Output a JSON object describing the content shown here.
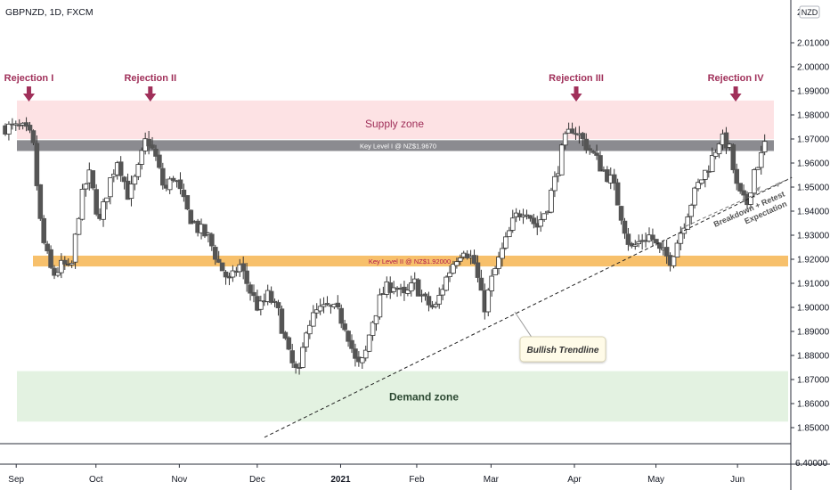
{
  "header": {
    "symbol_label": "GBPNZD, 1D, FXCM"
  },
  "currency_badge": "NZD",
  "zones": {
    "supply": {
      "label": "Supply zone",
      "top": 1.986,
      "bottom": 1.97,
      "color": "#fde2e4"
    },
    "demand": {
      "label": "Demand zone",
      "top": 1.8735,
      "bottom": 1.8525,
      "color": "#e3f2e1"
    }
  },
  "key_levels": [
    {
      "label": "Key Level I @ NZ$1.9670",
      "top": 1.9695,
      "bottom": 1.965,
      "color": "#8b8b90",
      "text_color": "#ffffff"
    },
    {
      "label": "Key Level II @ NZ$1.92000",
      "top": 1.9215,
      "bottom": 1.917,
      "color": "#f7c06b",
      "text_color": "#b0174a"
    }
  ],
  "rejections": [
    {
      "label": "Rejection I",
      "x": 1.3,
      "price": 1.9875
    },
    {
      "label": "Rejection II",
      "x": 8.0,
      "price": 1.986
    },
    {
      "label": "Rejection III",
      "x": 31.5,
      "price": 1.986
    },
    {
      "label": "Rejection IV",
      "x": 40.3,
      "price": 1.9855
    }
  ],
  "trendline": {
    "label": "Bullish Trendline",
    "start": {
      "x": 14.3,
      "price": 1.846
    },
    "end": {
      "x": 43.4,
      "price": 1.954
    }
  },
  "breakdown_note": {
    "line1": "Breakdown + Retest",
    "line2": "Expectation"
  },
  "colors": {
    "bull": "#ffffff",
    "bear": "#555555",
    "wick": "#333333",
    "annot": "#a0305a",
    "gray_arrow": "#9a9a9a"
  },
  "chart_data": {
    "type": "candlestick",
    "title": "GBPNZD, 1D, FXCM",
    "ylim": [
      1.845,
      2.02
    ],
    "yticks": [
      2.01,
      2.0,
      1.99,
      1.98,
      1.97,
      1.96,
      1.95,
      1.94,
      1.93,
      1.92,
      1.91,
      1.9,
      1.89,
      1.88,
      1.87,
      1.86,
      1.85
    ],
    "ytick_labels": [
      "2.01000",
      "2.00000",
      "1.99000",
      "1.98000",
      "1.97000",
      "1.96000",
      "1.95000",
      "1.94000",
      "1.93000",
      "1.92000",
      "1.91000",
      "1.90000",
      "1.89000",
      "1.88000",
      "1.87000",
      "1.86000",
      "1.85000"
    ],
    "partial_top_label": "2.",
    "separate_pane_label": "6.40000",
    "x_ticks": [
      {
        "label": "Sep",
        "x": 0.6,
        "bold": false
      },
      {
        "label": "Oct",
        "x": 5.0,
        "bold": false
      },
      {
        "label": "Nov",
        "x": 9.6,
        "bold": false
      },
      {
        "label": "Dec",
        "x": 13.9,
        "bold": false
      },
      {
        "label": "2021",
        "x": 18.5,
        "bold": true
      },
      {
        "label": "Feb",
        "x": 22.7,
        "bold": false
      },
      {
        "label": "Mar",
        "x": 26.8,
        "bold": false
      },
      {
        "label": "Apr",
        "x": 31.4,
        "bold": false
      },
      {
        "label": "May",
        "x": 35.9,
        "bold": false
      },
      {
        "label": "Jun",
        "x": 40.4,
        "bold": false
      }
    ],
    "x_range": [
      0,
      44.5
    ],
    "grid": false,
    "close_path": [
      [
        0,
        1.975
      ],
      [
        1,
        1.974
      ],
      [
        1.5,
        1.97
      ],
      [
        2,
        1.93
      ],
      [
        2.6,
        1.913
      ],
      [
        3.2,
        1.918
      ],
      [
        3.6,
        1.914
      ],
      [
        4.1,
        1.942
      ],
      [
        4.6,
        1.956
      ],
      [
        5.2,
        1.935
      ],
      [
        5.7,
        1.951
      ],
      [
        6.2,
        1.962
      ],
      [
        6.8,
        1.946
      ],
      [
        7.3,
        1.956
      ],
      [
        7.8,
        1.971
      ],
      [
        8.3,
        1.962
      ],
      [
        8.8,
        1.948
      ],
      [
        9.3,
        1.955
      ],
      [
        10.0,
        1.94
      ],
      [
        10.6,
        1.933
      ],
      [
        11.2,
        1.929
      ],
      [
        11.8,
        1.918
      ],
      [
        12.4,
        1.91
      ],
      [
        12.9,
        1.918
      ],
      [
        13.5,
        1.907
      ],
      [
        14.0,
        1.899
      ],
      [
        14.5,
        1.905
      ],
      [
        15.1,
        1.897
      ],
      [
        15.7,
        1.878
      ],
      [
        16.2,
        1.871
      ],
      [
        16.6,
        1.892
      ],
      [
        17.2,
        1.898
      ],
      [
        17.8,
        1.9
      ],
      [
        18.3,
        1.898
      ],
      [
        18.8,
        1.892
      ],
      [
        19.4,
        1.875
      ],
      [
        19.8,
        1.878
      ],
      [
        20.2,
        1.893
      ],
      [
        20.8,
        1.906
      ],
      [
        21.4,
        1.91
      ],
      [
        22.0,
        1.904
      ],
      [
        22.6,
        1.91
      ],
      [
        23.1,
        1.903
      ],
      [
        23.7,
        1.899
      ],
      [
        24.2,
        1.91
      ],
      [
        24.8,
        1.92
      ],
      [
        25.3,
        1.925
      ],
      [
        25.9,
        1.918
      ],
      [
        26.4,
        1.899
      ],
      [
        26.9,
        1.913
      ],
      [
        27.5,
        1.925
      ],
      [
        28.1,
        1.937
      ],
      [
        28.7,
        1.942
      ],
      [
        29.3,
        1.933
      ],
      [
        29.9,
        1.942
      ],
      [
        30.4,
        1.955
      ],
      [
        30.8,
        1.968
      ],
      [
        31.3,
        1.975
      ],
      [
        31.8,
        1.97
      ],
      [
        32.3,
        1.965
      ],
      [
        32.9,
        1.958
      ],
      [
        33.5,
        1.952
      ],
      [
        34.0,
        1.938
      ],
      [
        34.5,
        1.924
      ],
      [
        35.1,
        1.928
      ],
      [
        35.6,
        1.93
      ],
      [
        36.1,
        1.923
      ],
      [
        36.7,
        1.92
      ],
      [
        37.2,
        1.93
      ],
      [
        37.8,
        1.943
      ],
      [
        38.3,
        1.952
      ],
      [
        38.9,
        1.96
      ],
      [
        39.4,
        1.97
      ],
      [
        39.9,
        1.968
      ],
      [
        40.4,
        1.948
      ],
      [
        40.9,
        1.942
      ],
      [
        41.3,
        1.957
      ],
      [
        41.8,
        1.964
      ]
    ],
    "last_close": 1.969
  }
}
